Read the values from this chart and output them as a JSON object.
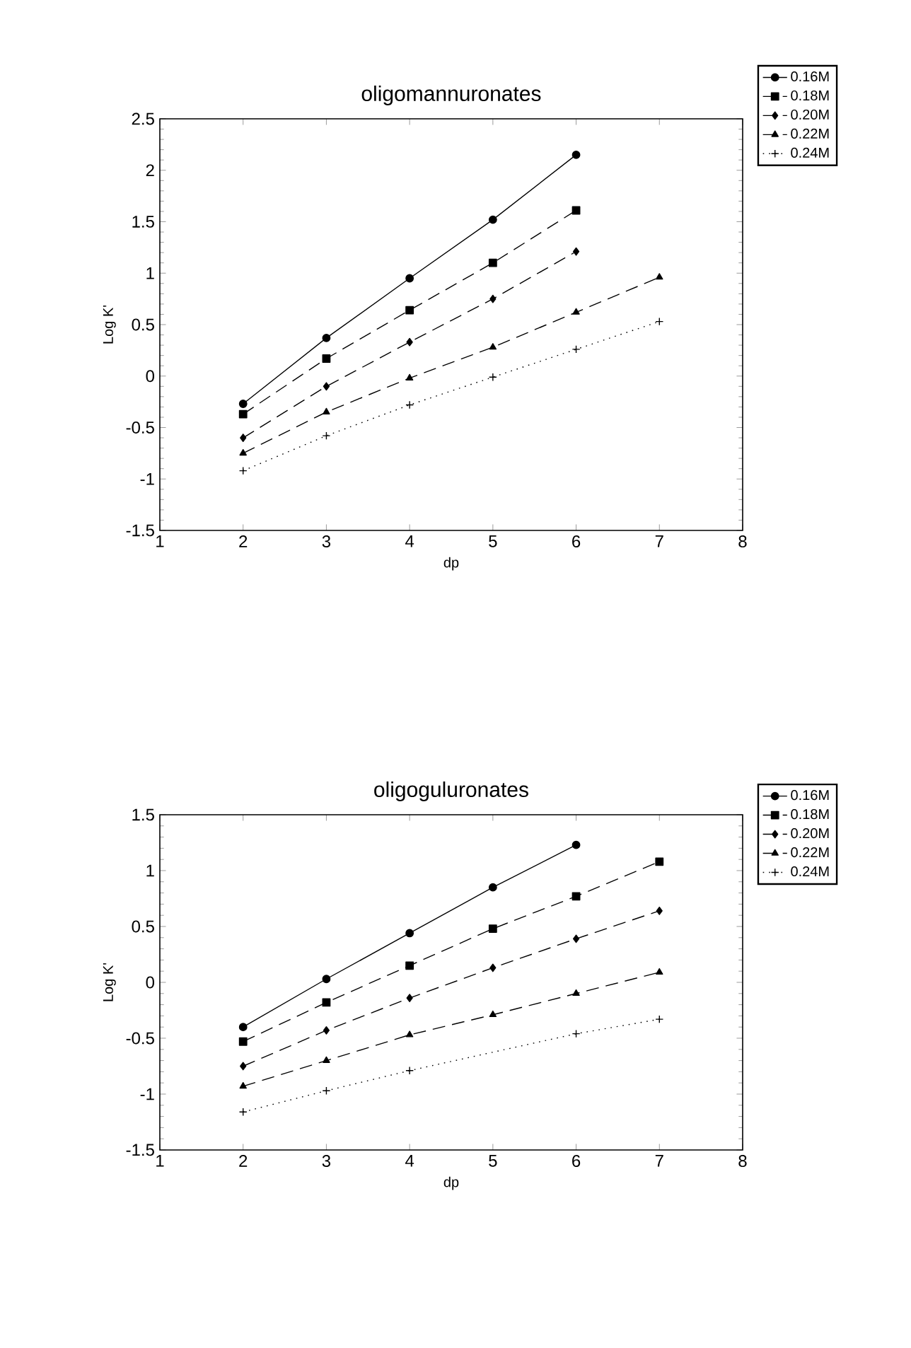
{
  "chart_data": [
    {
      "type": "line",
      "title": "oligomannuronates",
      "xlabel": "dp",
      "ylabel": "Log K'",
      "xlim": [
        1,
        8
      ],
      "ylim": [
        -1.5,
        2.5
      ],
      "xticks": [
        1,
        2,
        3,
        4,
        5,
        6,
        7,
        8
      ],
      "yticks": [
        -1.5,
        -1,
        -0.5,
        0,
        0.5,
        1,
        1.5,
        2,
        2.5
      ],
      "legend": "top right",
      "grid": false,
      "series": [
        {
          "name": "0.16M",
          "color": "#000000",
          "marker": "circle",
          "line_style": "solid",
          "x": [
            2,
            3,
            4,
            5,
            6
          ],
          "values": [
            -0.27,
            0.37,
            0.95,
            1.52,
            2.15
          ]
        },
        {
          "name": "0.18M",
          "color": "#000000",
          "marker": "square",
          "line_style": "dashed",
          "x": [
            2,
            3,
            4,
            5,
            6
          ],
          "values": [
            -0.37,
            0.17,
            0.64,
            1.1,
            1.61
          ]
        },
        {
          "name": "0.20M",
          "color": "#000000",
          "marker": "diamond",
          "line_style": "dashed",
          "x": [
            2,
            3,
            4,
            5,
            6
          ],
          "values": [
            -0.6,
            -0.1,
            0.33,
            0.75,
            1.21
          ]
        },
        {
          "name": "0.22M",
          "color": "#000000",
          "marker": "triangle",
          "line_style": "dashed",
          "x": [
            2,
            3,
            4,
            5,
            6,
            7
          ],
          "values": [
            -0.75,
            -0.35,
            -0.02,
            0.28,
            0.62,
            0.96
          ]
        },
        {
          "name": "0.24M",
          "color": "#000000",
          "marker": "cross",
          "line_style": "dotted",
          "x": [
            2,
            3,
            4,
            5,
            6,
            7
          ],
          "values": [
            -0.92,
            -0.58,
            -0.28,
            -0.01,
            0.26,
            0.53
          ]
        }
      ]
    },
    {
      "type": "line",
      "title": "oligoguluronates",
      "xlabel": "dp",
      "ylabel": "Log K'",
      "xlim": [
        1,
        8
      ],
      "ylim": [
        -1.5,
        1.5
      ],
      "xticks": [
        1,
        2,
        3,
        4,
        5,
        6,
        7,
        8
      ],
      "yticks": [
        -1.5,
        -1,
        -0.5,
        0,
        0.5,
        1,
        1.5
      ],
      "legend": "top right",
      "grid": false,
      "series": [
        {
          "name": "0.16M",
          "color": "#000000",
          "marker": "circle",
          "line_style": "solid",
          "x": [
            2,
            3,
            4,
            5,
            6
          ],
          "values": [
            -0.4,
            0.03,
            0.44,
            0.85,
            1.23
          ]
        },
        {
          "name": "0.18M",
          "color": "#000000",
          "marker": "square",
          "line_style": "dashed",
          "x": [
            2,
            3,
            4,
            5,
            6,
            7
          ],
          "values": [
            -0.53,
            -0.18,
            0.15,
            0.48,
            0.77,
            1.08
          ]
        },
        {
          "name": "0.20M",
          "color": "#000000",
          "marker": "diamond",
          "line_style": "dashed",
          "x": [
            2,
            3,
            4,
            5,
            6,
            7
          ],
          "values": [
            -0.75,
            -0.43,
            -0.14,
            0.13,
            0.39,
            0.64
          ]
        },
        {
          "name": "0.22M",
          "color": "#000000",
          "marker": "triangle",
          "line_style": "dashed",
          "x": [
            2,
            3,
            4,
            5,
            6,
            7
          ],
          "values": [
            -0.93,
            -0.7,
            -0.47,
            -0.29,
            -0.1,
            0.09
          ]
        },
        {
          "name": "0.24M",
          "color": "#000000",
          "marker": "cross",
          "line_style": "dotted",
          "x": [
            2,
            3,
            4,
            6,
            7
          ],
          "values": [
            -1.16,
            -0.97,
            -0.79,
            -0.46,
            -0.33
          ]
        }
      ]
    }
  ]
}
